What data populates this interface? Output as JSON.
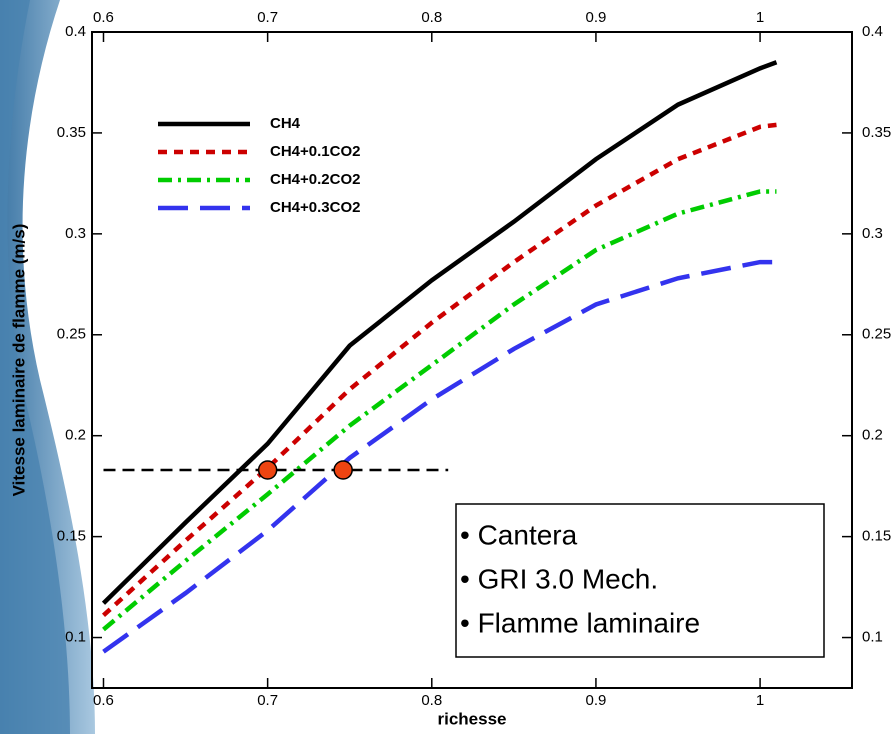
{
  "chart_data": {
    "type": "line",
    "x_label": "richesse",
    "y_label": "Vitesse laminaire de flamme (m/s)",
    "x": [
      0.6,
      0.65,
      0.7,
      0.75,
      0.8,
      0.85,
      0.9,
      0.95,
      1.0,
      1.01
    ],
    "series": [
      {
        "name": "CH4",
        "color": "#000000",
        "dash": "solid",
        "values": [
          0.117,
          0.157,
          0.196,
          0.2446,
          0.277,
          0.306,
          0.337,
          0.364,
          0.382,
          0.385
        ]
      },
      {
        "name": "CH4+0.1CO2",
        "color": "#cc0000",
        "dash": "dot",
        "values": [
          0.111,
          0.148,
          0.184,
          0.223,
          0.256,
          0.286,
          0.314,
          0.337,
          0.353,
          0.354
        ]
      },
      {
        "name": "CH4+0.2CO2",
        "color": "#00cc00",
        "dash": "dashdot",
        "values": [
          0.104,
          0.138,
          0.171,
          0.205,
          0.235,
          0.265,
          0.292,
          0.31,
          0.321,
          0.321
        ]
      },
      {
        "name": "CH4+0.3CO2",
        "color": "#3333ee",
        "dash": "longdash",
        "values": [
          0.093,
          0.122,
          0.153,
          0.189,
          0.218,
          0.243,
          0.265,
          0.278,
          0.286,
          0.286
        ]
      }
    ],
    "reference_line": {
      "x": [
        0.6,
        0.81
      ],
      "y": 0.183,
      "color": "#000000"
    },
    "markers": {
      "x": [
        0.7,
        0.746
      ],
      "y": [
        0.183,
        0.183
      ],
      "color": "#ee4411"
    },
    "annotation": [
      "• Cantera",
      "• GRI 3.0 Mech.",
      "• Flamme laminaire"
    ],
    "xlim": [
      0.593,
      1.056
    ],
    "ylim": [
      0.075,
      0.4
    ],
    "xticks": [
      0.6,
      0.7,
      0.8,
      0.9,
      1
    ],
    "yticks": [
      0.1,
      0.15,
      0.2,
      0.25,
      0.3,
      0.35,
      0.4
    ],
    "grid": false
  }
}
